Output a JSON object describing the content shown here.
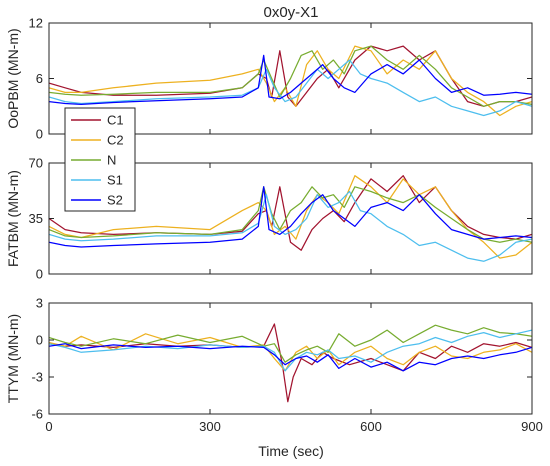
{
  "chart_data": {
    "type": "line",
    "title": "0x0y-X1",
    "xlabel": "Time (sec)",
    "xlim": [
      0,
      900
    ],
    "xticks": [
      "0",
      "300",
      "600",
      "900"
    ],
    "series_names": [
      "C1",
      "C2",
      "N",
      "S1",
      "S2"
    ],
    "colors": {
      "C1": "#A2142F",
      "C2": "#EDB120",
      "N": "#77AC30",
      "S1": "#4DBEEE",
      "S2": "#0000FF",
      "S2_alt": "#4B0082"
    },
    "legend": {
      "location": "panel-1 bottom-left",
      "entries": [
        "C1",
        "C2",
        "N",
        "S1",
        "S2"
      ]
    },
    "panels": [
      {
        "ylabel": "OoPBM (MN-m)",
        "ylim": [
          0,
          12
        ],
        "yticks": [
          "0",
          "6",
          "12"
        ],
        "series": [
          {
            "name": "C1",
            "x": [
              0,
              30,
              60,
              120,
              200,
              300,
              360,
              390,
              405,
              415,
              430,
              445,
              460,
              480,
              500,
              520,
              540,
              570,
              600,
              630,
              660,
              690,
              720,
              750,
              780,
              810,
              840,
              870,
              900
            ],
            "y": [
              5.5,
              5,
              4.5,
              4.2,
              4.2,
              4.4,
              5,
              6.5,
              6,
              4,
              9,
              4,
              3,
              4.5,
              6,
              7,
              5,
              8,
              9.5,
              9,
              9.5,
              8,
              9,
              6,
              3.5,
              3,
              3.5,
              3.5,
              4
            ]
          },
          {
            "name": "C2",
            "x": [
              0,
              30,
              60,
              120,
              200,
              300,
              360,
              390,
              405,
              420,
              440,
              460,
              480,
              500,
              520,
              540,
              570,
              600,
              630,
              660,
              690,
              720,
              750,
              780,
              810,
              840,
              870,
              900
            ],
            "y": [
              5,
              4.5,
              4.5,
              5,
              5.5,
              5.8,
              6.5,
              7,
              5.5,
              3.5,
              5,
              3,
              7.5,
              9,
              7,
              6,
              9.5,
              9,
              6.5,
              8,
              7,
              9,
              6,
              4.5,
              3.5,
              2,
              3,
              3.5
            ]
          },
          {
            "name": "N",
            "x": [
              0,
              30,
              60,
              120,
              200,
              300,
              360,
              390,
              400,
              415,
              430,
              450,
              470,
              490,
              510,
              530,
              550,
              570,
              600,
              630,
              660,
              690,
              720,
              750,
              780,
              810,
              840,
              870,
              900
            ],
            "y": [
              4.5,
              4.3,
              4.2,
              4.3,
              4.5,
              4.5,
              5,
              6.5,
              8,
              6,
              4,
              6,
              8.5,
              9,
              7,
              8,
              6.5,
              9,
              9.5,
              8,
              7,
              8.5,
              7,
              5,
              4,
              3,
              3.5,
              3.5,
              3.2
            ]
          },
          {
            "name": "S1",
            "x": [
              0,
              30,
              60,
              120,
              200,
              300,
              360,
              390,
              405,
              420,
              440,
              460,
              480,
              500,
              520,
              540,
              560,
              580,
              600,
              630,
              660,
              690,
              720,
              750,
              780,
              810,
              840,
              870,
              900
            ],
            "y": [
              4,
              3.5,
              3.3,
              3.5,
              3.8,
              4,
              4.2,
              5,
              7,
              5,
              3.5,
              4,
              5.5,
              7,
              6,
              7,
              8,
              6.5,
              6,
              5.5,
              4.5,
              3.5,
              4,
              3,
              2.5,
              2,
              2.5,
              3.5,
              3
            ]
          },
          {
            "name": "S2",
            "x": [
              0,
              30,
              60,
              120,
              200,
              300,
              360,
              390,
              400,
              410,
              430,
              450,
              470,
              490,
              510,
              530,
              550,
              570,
              600,
              630,
              660,
              690,
              720,
              750,
              780,
              810,
              840,
              870,
              900
            ],
            "y": [
              3.5,
              3.3,
              3.2,
              3.4,
              3.6,
              3.8,
              4,
              5,
              8.5,
              4,
              3.8,
              4.5,
              5.5,
              6.5,
              7.5,
              6,
              5,
              4.5,
              6.5,
              7.5,
              6.5,
              8,
              6,
              4.5,
              5,
              4.2,
              4.3,
              4.5,
              4.3
            ]
          }
        ]
      },
      {
        "ylabel": "FATBM (MN-m)",
        "ylim": [
          0,
          70
        ],
        "yticks": [
          "0",
          "35",
          "70"
        ],
        "series": [
          {
            "name": "C1",
            "x": [
              0,
              30,
              60,
              120,
              200,
              300,
              360,
              390,
              405,
              415,
              430,
              450,
              470,
              490,
              510,
              530,
              550,
              570,
              600,
              630,
              660,
              690,
              720,
              750,
              780,
              810,
              840,
              870,
              900
            ],
            "y": [
              35,
              28,
              26,
              25,
              26,
              25,
              27,
              38,
              40,
              30,
              55,
              20,
              15,
              28,
              35,
              40,
              33,
              45,
              60,
              52,
              62,
              45,
              55,
              40,
              30,
              25,
              23,
              22,
              25
            ]
          },
          {
            "name": "C2",
            "x": [
              0,
              30,
              60,
              120,
              200,
              300,
              360,
              390,
              405,
              420,
              440,
              460,
              480,
              500,
              520,
              540,
              570,
              600,
              630,
              660,
              690,
              720,
              750,
              780,
              810,
              840,
              870,
              900
            ],
            "y": [
              30,
              25,
              23,
              28,
              30,
              28,
              40,
              45,
              40,
              25,
              30,
              22,
              40,
              50,
              45,
              38,
              62,
              55,
              45,
              60,
              50,
              55,
              40,
              28,
              20,
              10,
              12,
              20
            ]
          },
          {
            "name": "N",
            "x": [
              0,
              30,
              60,
              120,
              200,
              300,
              360,
              390,
              400,
              415,
              430,
              450,
              470,
              490,
              510,
              530,
              550,
              570,
              600,
              630,
              660,
              690,
              720,
              750,
              780,
              810,
              840,
              870,
              900
            ],
            "y": [
              28,
              24,
              23,
              24,
              26,
              25,
              28,
              40,
              55,
              38,
              28,
              40,
              45,
              55,
              48,
              50,
              42,
              55,
              52,
              48,
              45,
              50,
              42,
              35,
              28,
              22,
              20,
              22,
              20
            ]
          },
          {
            "name": "S1",
            "x": [
              0,
              30,
              60,
              120,
              200,
              300,
              360,
              390,
              405,
              420,
              440,
              460,
              480,
              500,
              520,
              540,
              560,
              580,
              600,
              630,
              660,
              690,
              720,
              750,
              780,
              810,
              840,
              870,
              900
            ],
            "y": [
              25,
              22,
              21,
              22,
              24,
              24,
              26,
              32,
              50,
              30,
              25,
              28,
              35,
              50,
              42,
              45,
              52,
              40,
              38,
              30,
              25,
              18,
              20,
              15,
              10,
              8,
              12,
              20,
              22
            ]
          },
          {
            "name": "S2",
            "x": [
              0,
              30,
              60,
              120,
              200,
              300,
              360,
              390,
              400,
              410,
              430,
              450,
              470,
              490,
              510,
              530,
              550,
              570,
              600,
              630,
              660,
              690,
              720,
              750,
              780,
              810,
              840,
              870,
              900
            ],
            "y": [
              20,
              18,
              17,
              18,
              19,
              20,
              22,
              30,
              55,
              28,
              25,
              30,
              38,
              45,
              50,
              40,
              35,
              30,
              42,
              45,
              40,
              50,
              38,
              28,
              25,
              22,
              23,
              24,
              23
            ]
          }
        ]
      },
      {
        "ylabel": "TTYM (MN-m)",
        "ylim": [
          -6,
          3
        ],
        "yticks": [
          "-6",
          "-3",
          "0",
          "3"
        ],
        "series": [
          {
            "name": "C1",
            "x": [
              0,
              30,
              60,
              120,
              180,
              240,
              300,
              360,
              400,
              420,
              435,
              445,
              455,
              470,
              490,
              510,
              530,
              560,
              600,
              630,
              660,
              690,
              720,
              750,
              780,
              810,
              840,
              870,
              900
            ],
            "y": [
              -0.3,
              -0.5,
              -0.4,
              -0.6,
              -0.3,
              -0.5,
              -0.4,
              -0.6,
              -0.5,
              1.3,
              -2,
              -5,
              -3,
              -1.5,
              -2,
              -1,
              -1.5,
              -2,
              -1.5,
              -2,
              -2.5,
              -1,
              -1.5,
              -0.5,
              -1,
              -0.3,
              -0.5,
              -0.2,
              -0.6
            ]
          },
          {
            "name": "C2",
            "x": [
              0,
              30,
              60,
              120,
              180,
              240,
              300,
              360,
              400,
              420,
              440,
              460,
              480,
              500,
              520,
              540,
              570,
              600,
              630,
              660,
              690,
              720,
              750,
              780,
              810,
              840,
              870,
              900
            ],
            "y": [
              -0.2,
              -0.5,
              0.3,
              -0.8,
              0.5,
              -0.3,
              0.2,
              -0.6,
              -0.4,
              -1.5,
              -2.5,
              -1,
              -0.5,
              -1.5,
              -0.8,
              -2,
              -1,
              -0.5,
              -1.5,
              -2,
              -1,
              -0.5,
              -1.3,
              -1.5,
              -1,
              -0.8,
              -0.3,
              -1
            ]
          },
          {
            "name": "N",
            "x": [
              0,
              30,
              60,
              120,
              180,
              240,
              300,
              360,
              400,
              420,
              440,
              460,
              480,
              500,
              520,
              540,
              570,
              600,
              630,
              660,
              690,
              720,
              750,
              780,
              810,
              840,
              870,
              900
            ],
            "y": [
              0.2,
              -0.2,
              -0.5,
              0.1,
              -0.3,
              0.4,
              -0.2,
              0.3,
              -0.5,
              -0.3,
              -1.8,
              -1.2,
              -0.8,
              -0.5,
              -1,
              0.5,
              -0.5,
              0,
              0.8,
              -0.2,
              0.5,
              1.2,
              0.8,
              0.5,
              1,
              0.6,
              0.5,
              0.3
            ]
          },
          {
            "name": "S1",
            "x": [
              0,
              30,
              60,
              120,
              180,
              240,
              300,
              360,
              400,
              420,
              440,
              460,
              480,
              500,
              520,
              540,
              570,
              600,
              630,
              660,
              690,
              720,
              750,
              780,
              810,
              840,
              870,
              900
            ],
            "y": [
              -0.3,
              -0.6,
              -1,
              -0.8,
              -0.5,
              -0.7,
              -0.4,
              -0.6,
              -0.5,
              -1,
              -2.5,
              -1.5,
              -1,
              -1.2,
              -0.8,
              -1.5,
              -1.3,
              -1.8,
              -1,
              -0.5,
              -0.3,
              0.2,
              -0.2,
              0.3,
              0.6,
              0.2,
              0.5,
              0.8
            ]
          },
          {
            "name": "S2",
            "x": [
              0,
              30,
              60,
              120,
              180,
              240,
              300,
              360,
              400,
              420,
              440,
              460,
              480,
              500,
              520,
              540,
              570,
              600,
              630,
              660,
              690,
              720,
              750,
              780,
              810,
              840,
              870,
              900
            ],
            "y": [
              -0.5,
              -0.3,
              -0.7,
              -0.4,
              -0.6,
              -0.5,
              -0.7,
              -0.5,
              -0.6,
              -1.2,
              -2,
              -1.5,
              -1.3,
              -1.8,
              -1.2,
              -2.3,
              -1.5,
              -2.2,
              -1.8,
              -2.5,
              -1.8,
              -2,
              -1.5,
              -1.3,
              -1.5,
              -1.2,
              -1,
              -0.6
            ]
          }
        ]
      }
    ]
  }
}
